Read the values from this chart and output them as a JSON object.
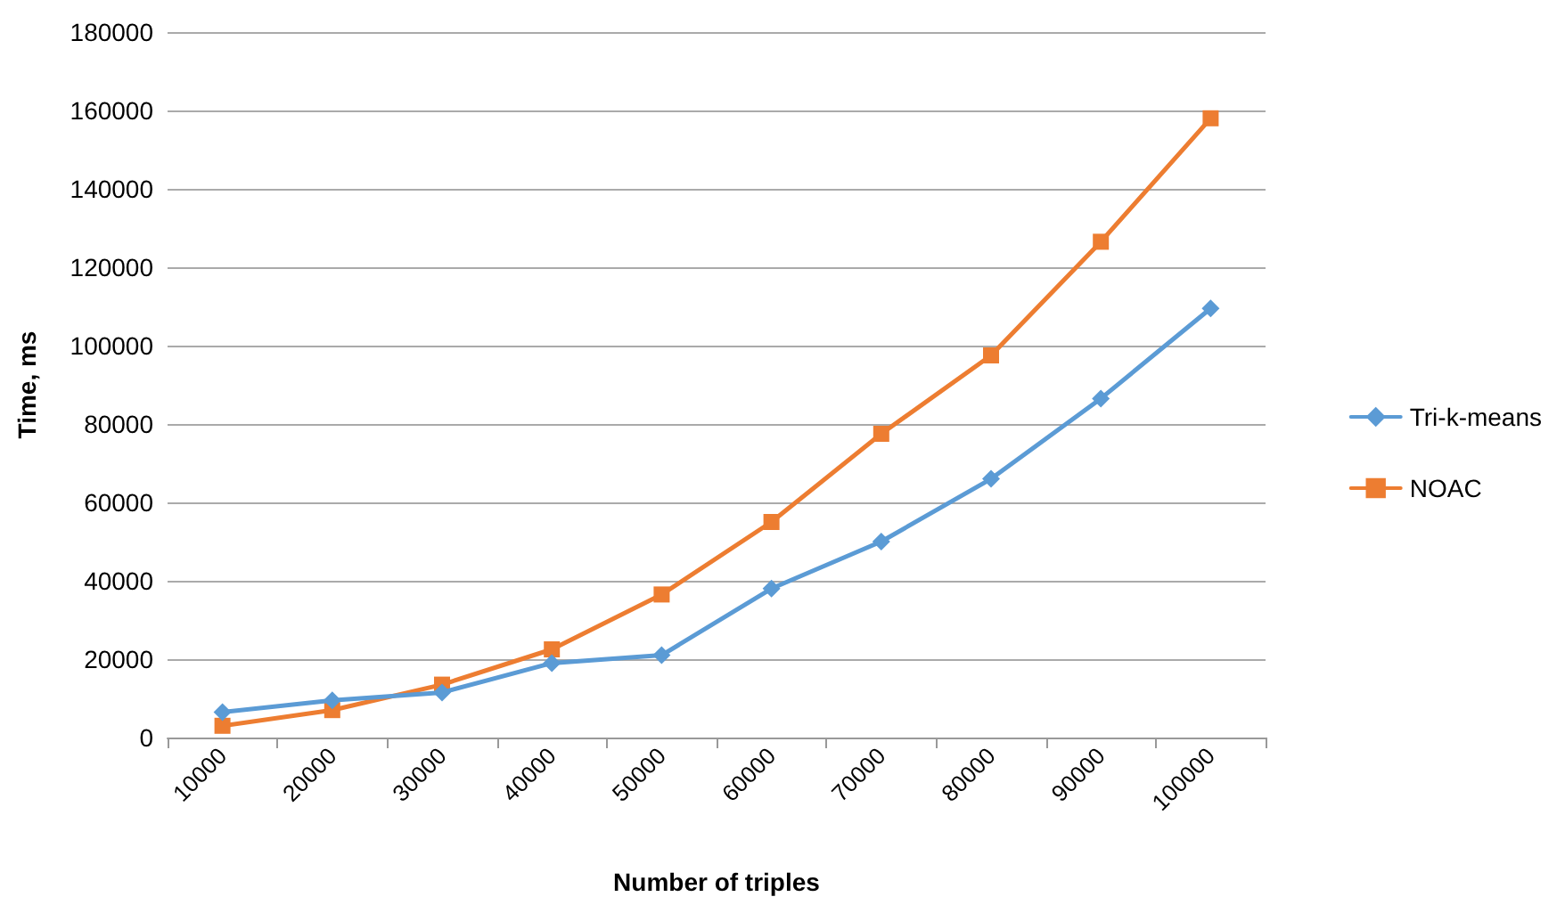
{
  "chart_data": {
    "type": "line",
    "xlabel": "Number of triples",
    "ylabel": "Time, ms",
    "categories": [
      "10000",
      "20000",
      "30000",
      "40000",
      "50000",
      "60000",
      "70000",
      "80000",
      "90000",
      "100000"
    ],
    "series": [
      {
        "name": "Tri-k-means",
        "color": "#5b9bd5",
        "marker": "diamond",
        "values": [
          6500,
          9500,
          11500,
          19000,
          21000,
          38000,
          50000,
          66000,
          86500,
          109500
        ]
      },
      {
        "name": "NOAC",
        "color": "#ed7d31",
        "marker": "square",
        "values": [
          3000,
          7000,
          13500,
          22500,
          36500,
          55000,
          77500,
          97500,
          126500,
          158000
        ]
      }
    ],
    "ylim": [
      0,
      180000
    ],
    "yticks": [
      0,
      20000,
      40000,
      60000,
      80000,
      100000,
      120000,
      140000,
      160000,
      180000
    ],
    "grid": "y",
    "legend": "right"
  }
}
